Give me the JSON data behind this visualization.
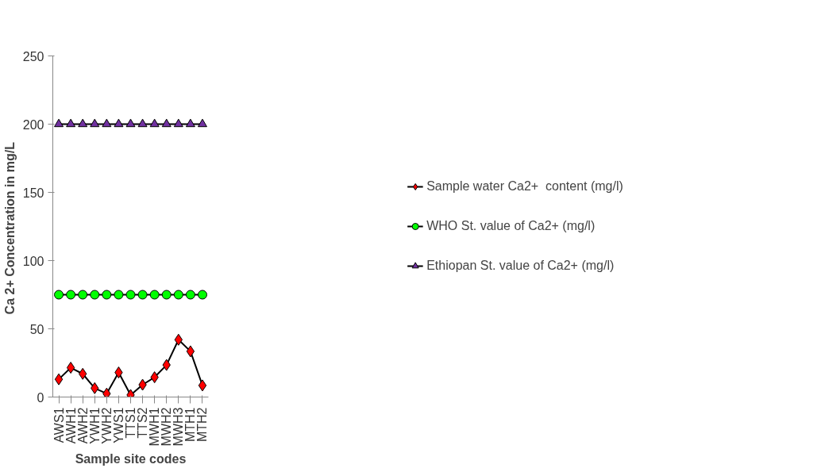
{
  "chart_data": {
    "type": "line",
    "xlabel": "Sample site codes",
    "ylabel": "Ca 2+ Concentration  in mg/L",
    "categories": [
      "AWS1",
      "AWH1",
      "AWH2",
      "YWH1",
      "YWH2",
      "YWS1",
      "TTS1",
      "TTS2",
      "MWH1",
      "MWH2",
      "MWH3",
      "MTH1",
      "MTH2"
    ],
    "series": [
      {
        "name": "Sample water Ca2+  content (mg/l)",
        "color": "#ff0000",
        "marker": "diamond",
        "values": [
          13,
          21.5,
          17,
          6.5,
          2.5,
          18,
          1.5,
          9,
          14.5,
          23.5,
          42,
          33.5,
          8.5
        ]
      },
      {
        "name": "WHO St. value of Ca2+ (mg/l)",
        "color": "#00ff00",
        "marker": "circle",
        "values": [
          75,
          75,
          75,
          75,
          75,
          75,
          75,
          75,
          75,
          75,
          75,
          75,
          75
        ]
      },
      {
        "name": "Ethiopan St. value of Ca2+ (mg/l)",
        "color": "#7030a0",
        "marker": "triangle",
        "values": [
          200,
          200,
          200,
          200,
          200,
          200,
          200,
          200,
          200,
          200,
          200,
          200,
          200
        ]
      }
    ],
    "ylim": [
      0,
      250
    ],
    "yticks": [
      0,
      50,
      100,
      150,
      200,
      250
    ],
    "grid": false,
    "legend": "right",
    "line_style": "solid"
  }
}
